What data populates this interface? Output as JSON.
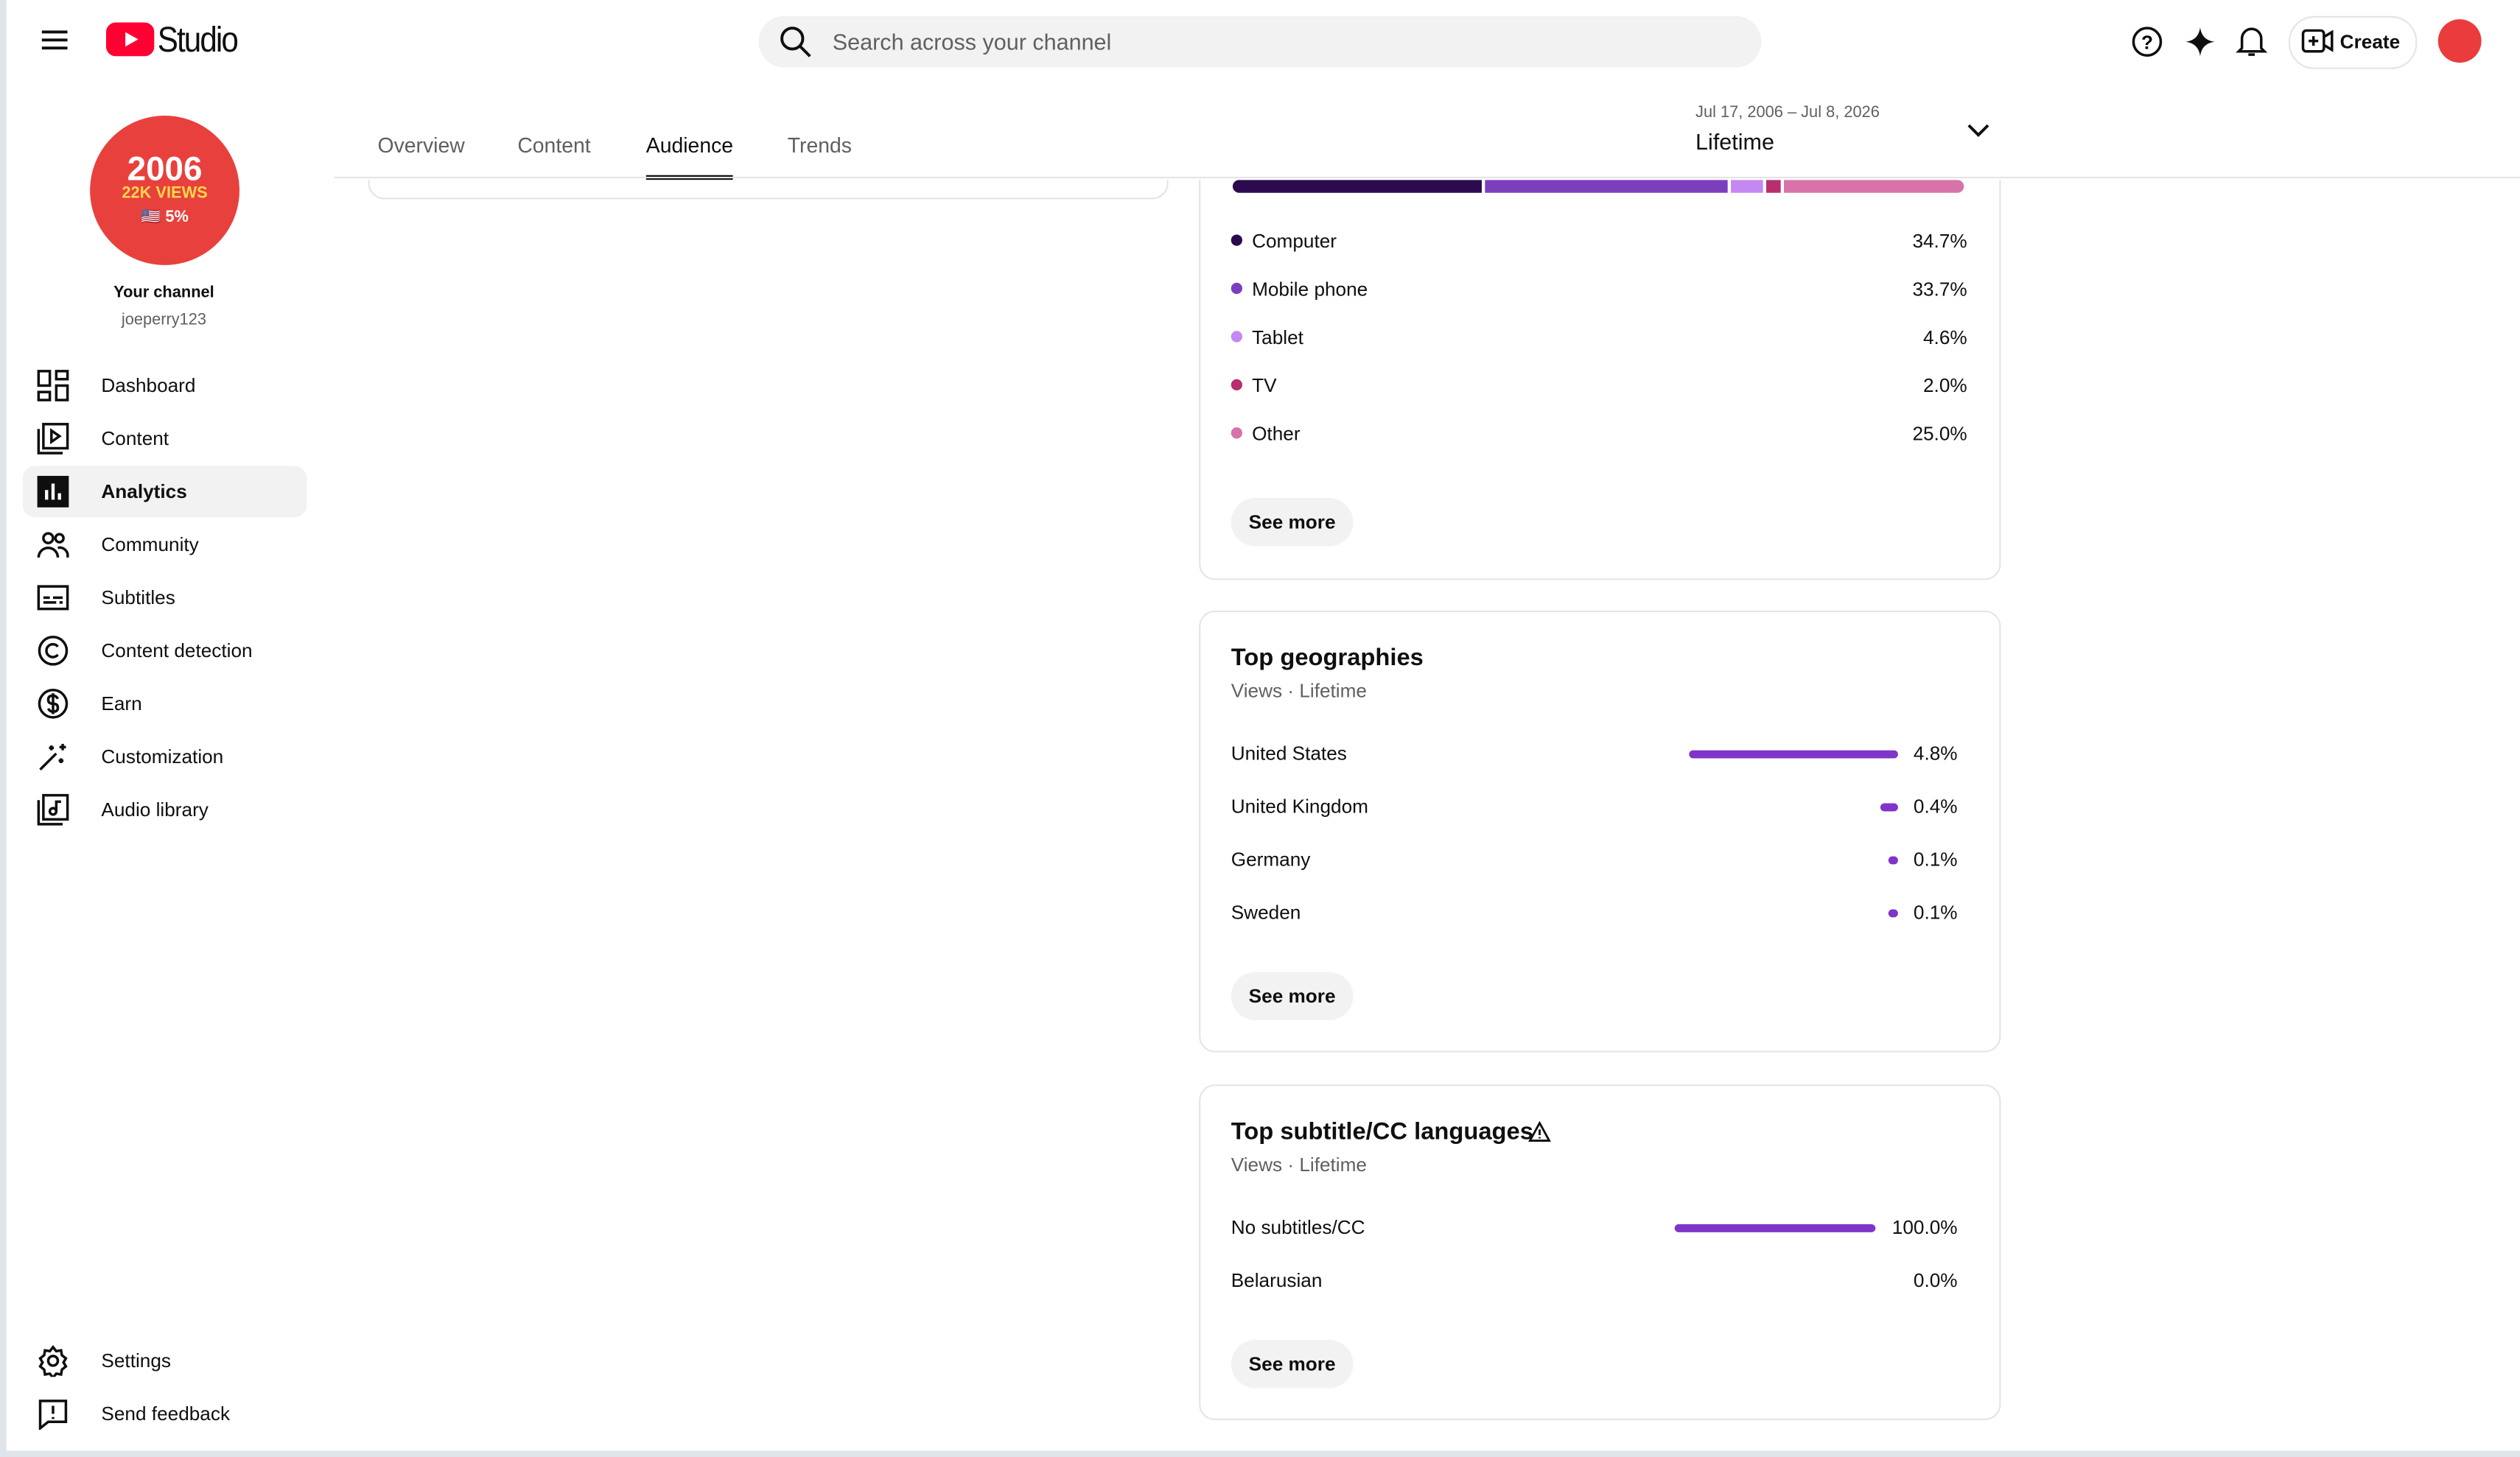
{
  "header": {
    "logo": "Studio",
    "search_placeholder": "Search across your channel",
    "create": "Create"
  },
  "channel": {
    "avatar_lines": [
      "2006",
      "22K VIEWS",
      "🇺🇸 5%"
    ],
    "name": "Your channel",
    "handle": "joeperry123"
  },
  "nav": [
    "Dashboard",
    "Content",
    "Analytics",
    "Community",
    "Subtitles",
    "Content detection",
    "Earn",
    "Customization",
    "Audio library"
  ],
  "nav_active": 2,
  "nav_bottom": [
    "Settings",
    "Send feedback"
  ],
  "tabs": [
    "Overview",
    "Content",
    "Audience",
    "Trends"
  ],
  "tab_active": 2,
  "date_range": {
    "dates": "Jul 17, 2006 – Jul 8, 2026",
    "period": "Lifetime"
  },
  "devices": {
    "rows": [
      {
        "name": "Computer",
        "value": 34.7,
        "label": "34.7%",
        "color": "#2b0b4d"
      },
      {
        "name": "Mobile phone",
        "value": 33.7,
        "label": "33.7%",
        "color": "#7b3fbe"
      },
      {
        "name": "Tablet",
        "value": 4.6,
        "label": "4.6%",
        "color": "#c587f2"
      },
      {
        "name": "TV",
        "value": 2.0,
        "label": "2.0%",
        "color": "#b72f6c"
      },
      {
        "name": "Other",
        "value": 25.0,
        "label": "25.0%",
        "color": "#d873a9"
      }
    ],
    "button": "See more"
  },
  "geographies": {
    "title": "Top geographies",
    "subtitle": "Views · Lifetime",
    "color": "#8134c9",
    "rows": [
      {
        "name": "United States",
        "value": 4.8,
        "label": "4.8%"
      },
      {
        "name": "United Kingdom",
        "value": 0.4,
        "label": "0.4%"
      },
      {
        "name": "Germany",
        "value": 0.1,
        "label": "0.1%"
      },
      {
        "name": "Sweden",
        "value": 0.1,
        "label": "0.1%"
      }
    ],
    "button": "See more"
  },
  "subtitles": {
    "title": "Top subtitle/CC languages",
    "subtitle": "Views · Lifetime",
    "color": "#8134c9",
    "rows": [
      {
        "name": "No subtitles/CC",
        "value": 100.0,
        "label": "100.0%"
      },
      {
        "name": "Belarusian",
        "value": 0.0,
        "label": "0.0%"
      }
    ],
    "button": "See more"
  }
}
